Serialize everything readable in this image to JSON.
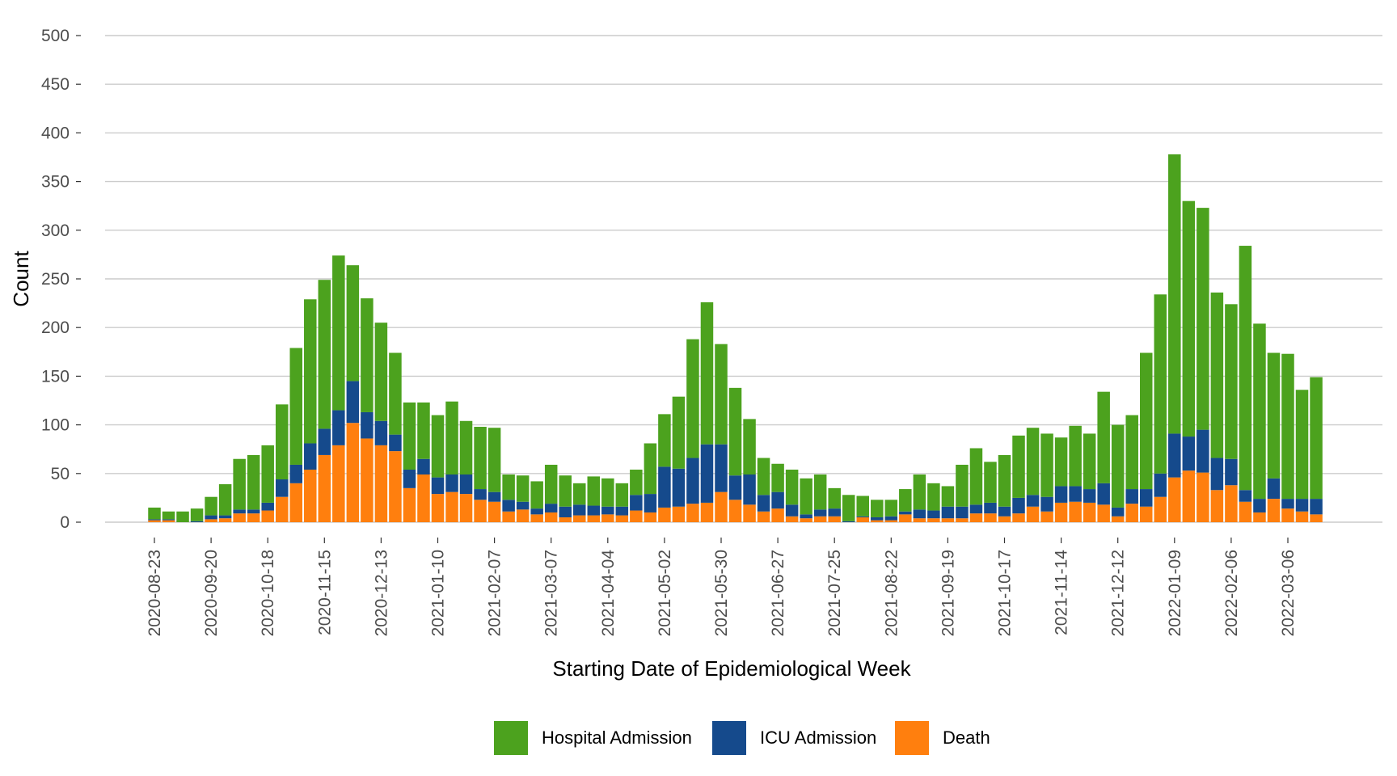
{
  "chart_data": {
    "type": "bar",
    "stacked": true,
    "xlabel": "Starting Date of Epidemiological Week",
    "ylabel": "Count",
    "ylim": [
      0,
      500
    ],
    "yticks": [
      0,
      50,
      100,
      150,
      200,
      250,
      300,
      350,
      400,
      450,
      500
    ],
    "grid": true,
    "legend_position": "bottom",
    "first_week": "2020-08-23",
    "x_tick_labels": [
      "2020-08-23",
      "2020-09-20",
      "2020-10-18",
      "2020-11-15",
      "2020-12-13",
      "2021-01-10",
      "2021-02-07",
      "2021-03-07",
      "2021-04-04",
      "2021-05-02",
      "2021-05-30",
      "2021-06-27",
      "2021-07-25",
      "2021-08-22",
      "2021-09-19",
      "2021-10-17",
      "2021-11-14",
      "2021-12-12",
      "2022-01-09",
      "2022-02-06",
      "2022-03-06"
    ],
    "series": [
      {
        "name": "Death",
        "color": "#FF7F0E",
        "values": [
          2,
          2,
          0,
          0,
          3,
          4,
          9,
          9,
          12,
          26,
          40,
          54,
          69,
          79,
          102,
          86,
          79,
          73,
          35,
          49,
          29,
          31,
          29,
          23,
          21,
          11,
          13,
          8,
          10,
          5,
          7,
          7,
          8,
          7,
          12,
          10,
          15,
          16,
          19,
          20,
          31,
          23,
          18,
          11,
          14,
          6,
          4,
          6,
          6,
          0,
          5,
          2,
          2,
          8,
          4,
          4,
          4,
          4,
          9,
          9,
          6,
          9,
          16,
          11,
          20,
          21,
          20,
          18,
          6,
          19,
          16,
          26,
          46,
          53,
          51,
          33,
          38,
          21,
          10,
          24,
          14,
          11,
          8
        ]
      },
      {
        "name": "ICU Admission",
        "color": "#154A8C",
        "values": [
          1,
          1,
          0,
          1,
          4,
          3,
          4,
          4,
          8,
          18,
          19,
          27,
          27,
          36,
          43,
          27,
          25,
          17,
          19,
          16,
          17,
          18,
          20,
          11,
          10,
          12,
          8,
          6,
          9,
          11,
          11,
          10,
          8,
          9,
          16,
          19,
          42,
          39,
          47,
          60,
          49,
          25,
          31,
          17,
          17,
          12,
          4,
          7,
          8,
          1,
          1,
          3,
          4,
          3,
          9,
          8,
          12,
          12,
          9,
          11,
          10,
          16,
          12,
          15,
          17,
          16,
          14,
          22,
          9,
          15,
          18,
          24,
          45,
          35,
          44,
          33,
          27,
          12,
          14,
          21,
          10,
          13,
          16
        ]
      },
      {
        "name": "Hospital Admission",
        "color": "#4CA21E",
        "values": [
          12,
          8,
          11,
          13,
          19,
          32,
          52,
          56,
          59,
          77,
          120,
          148,
          153,
          159,
          119,
          117,
          101,
          84,
          69,
          58,
          64,
          75,
          55,
          64,
          66,
          26,
          27,
          28,
          40,
          32,
          22,
          30,
          29,
          24,
          26,
          52,
          54,
          74,
          122,
          146,
          103,
          90,
          57,
          38,
          29,
          36,
          37,
          36,
          21,
          27,
          21,
          18,
          17,
          23,
          36,
          28,
          21,
          43,
          58,
          42,
          53,
          64,
          69,
          65,
          50,
          62,
          57,
          94,
          85,
          76,
          140,
          184,
          287,
          242,
          228,
          170,
          159,
          251,
          180,
          129,
          149,
          112,
          125
        ]
      }
    ],
    "legend": [
      {
        "label": "Hospital Admission",
        "color": "#4CA21E"
      },
      {
        "label": "ICU Admission",
        "color": "#154A8C"
      },
      {
        "label": "Death",
        "color": "#FF7F0E"
      }
    ]
  }
}
